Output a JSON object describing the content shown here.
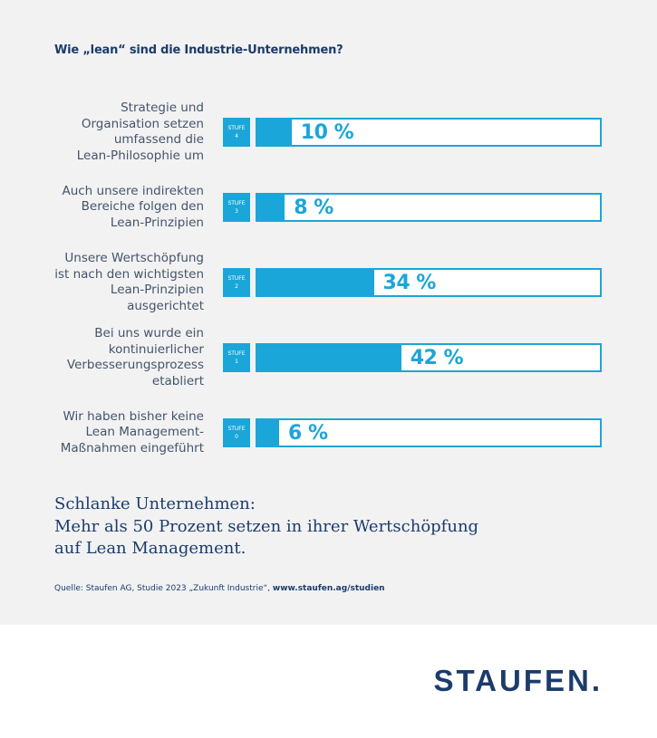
{
  "title": "Wie „lean“ sind die Industrie-Unternehmen?",
  "chart_data": {
    "type": "bar",
    "orientation": "horizontal",
    "title": "Wie „lean“ sind die Industrie-Unternehmen?",
    "unit": "%",
    "xlim": [
      0,
      100
    ],
    "categories": [
      "Strategie und Organisation setzen umfassend die Lean-Philosophie um",
      "Auch unsere indirekten Bereiche folgen den Lean-Prinzipien",
      "Unsere Wertschöpfung ist nach den wichtigsten Lean-Prinzipien ausgerichtet",
      "Bei uns wurde ein kontinuierlicher Verbesserungsprozess etabliert",
      "Wir haben bisher keine Lean Management-Maßnahmen eingeführt"
    ],
    "values": [
      10,
      8,
      34,
      42,
      6
    ],
    "rows": [
      {
        "label_lines": [
          "Strategie und",
          "Organisation setzen",
          "umfassend die",
          "Lean-Philosophie um"
        ],
        "stufe_word": "STUFE",
        "stufe_num": "4",
        "value": 10,
        "value_label": "10 %"
      },
      {
        "label_lines": [
          "Auch unsere indirekten",
          "Bereiche folgen den",
          "Lean-Prinzipien"
        ],
        "stufe_word": "STUFE",
        "stufe_num": "3",
        "value": 8,
        "value_label": "8 %"
      },
      {
        "label_lines": [
          "Unsere Wertschöpfung",
          "ist nach den wichtigsten",
          "Lean-Prinzipien",
          "ausgerichtet"
        ],
        "stufe_word": "STUFE",
        "stufe_num": "2",
        "value": 34,
        "value_label": "34 %"
      },
      {
        "label_lines": [
          "Bei uns wurde ein",
          "kontinuierlicher",
          "Verbesserungsprozess",
          "etabliert"
        ],
        "stufe_word": "STUFE",
        "stufe_num": "1",
        "value": 42,
        "value_label": "42 %"
      },
      {
        "label_lines": [
          "Wir haben bisher keine",
          "Lean Management-",
          "Maßnahmen eingeführt"
        ],
        "stufe_word": "STUFE",
        "stufe_num": "0",
        "value": 6,
        "value_label": "6 %"
      }
    ]
  },
  "headline_lines": [
    "Schlanke Unternehmen:",
    "Mehr als 50 Prozent setzen in ihrer Wertschöpfung",
    "auf Lean Management."
  ],
  "source": {
    "text": "Quelle: Staufen AG, Studie 2023 „Zukunft Industrie“, ",
    "link": "www.staufen.ag/studien"
  },
  "logo": "STAUFEN.",
  "colors": {
    "accent": "#1ba6d9",
    "navy": "#1b3c6b",
    "label_text": "#44546a",
    "panel_bg": "#f2f2f3"
  }
}
